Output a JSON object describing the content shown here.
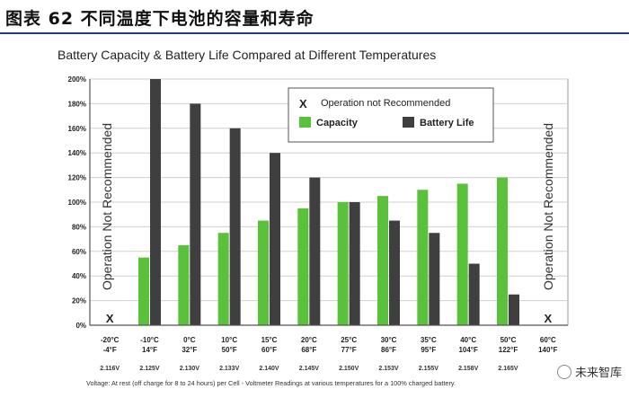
{
  "figure_title": "图表 62 不同温度下电池的容量和寿命",
  "watermark": "未来智库",
  "colors": {
    "capacity": "#59c13a",
    "battery_life": "#3f3f3f",
    "rule": "#1f3d7a",
    "grid": "#cfcfcf"
  },
  "chart_data": {
    "type": "bar",
    "title": "Battery Capacity & Battery Life Compared at Different Temperatures",
    "xlabel": "",
    "ylabel": "",
    "ylim": [
      0,
      200
    ],
    "y_ticks": [
      "0%",
      "20%",
      "40%",
      "60%",
      "80%",
      "100%",
      "120%",
      "140%",
      "160%",
      "180%",
      "200%"
    ],
    "grid": true,
    "legend_position": "top-right",
    "legend": [
      {
        "marker": "X",
        "label": "Operation not Recommended"
      },
      {
        "marker": "capacity",
        "label": "Capacity"
      },
      {
        "marker": "battery_life",
        "label": "Battery Life"
      }
    ],
    "categories": [
      {
        "c": "-20°C",
        "f": "-4°F",
        "v": "2.116V"
      },
      {
        "c": "-10°C",
        "f": "14°F",
        "v": "2.125V"
      },
      {
        "c": "0°C",
        "f": "32°F",
        "v": "2.130V"
      },
      {
        "c": "10°C",
        "f": "50°F",
        "v": "2.133V"
      },
      {
        "c": "15°C",
        "f": "60°F",
        "v": "2.140V"
      },
      {
        "c": "20°C",
        "f": "68°F",
        "v": "2.145V"
      },
      {
        "c": "25°C",
        "f": "77°F",
        "v": "2.150V"
      },
      {
        "c": "30°C",
        "f": "86°F",
        "v": "2.153V"
      },
      {
        "c": "35°C",
        "f": "95°F",
        "v": "2.155V"
      },
      {
        "c": "40°C",
        "f": "104°F",
        "v": "2.158V"
      },
      {
        "c": "50°C",
        "f": "122°F",
        "v": "2.165V"
      },
      {
        "c": "60°C",
        "f": "140°F",
        "v": ""
      }
    ],
    "series": [
      {
        "name": "Capacity",
        "values": [
          null,
          55,
          65,
          75,
          85,
          95,
          100,
          105,
          110,
          115,
          120,
          null
        ]
      },
      {
        "name": "Battery Life",
        "values": [
          null,
          200,
          180,
          160,
          140,
          120,
          100,
          85,
          75,
          50,
          25,
          null
        ]
      }
    ],
    "not_recommended_label": "Operation Not Recommended",
    "not_recommended_marker": "X",
    "footnote": "Voltage: At rest (off charge for 8 to 24 hours) per Cell - Voltmeter Readings at various temperatures for a 100% charged battery."
  }
}
